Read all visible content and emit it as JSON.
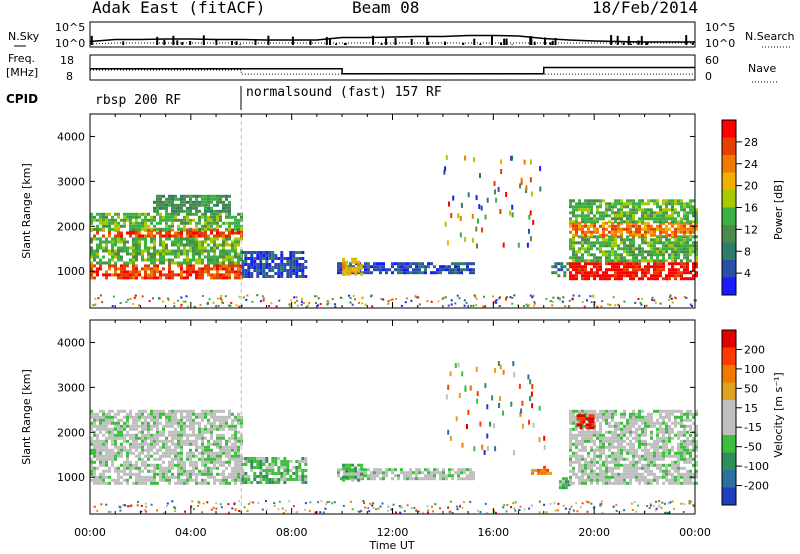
{
  "header": {
    "site": "Adak East (fitACF)",
    "beam": "Beam 08",
    "date": "18/Feb/2014"
  },
  "top_panels": {
    "nsky_label": "N.Sky",
    "nsky_ticks": [
      "10^5",
      "10^0"
    ],
    "nsearch_label": "N.Search",
    "nsearch_ticks": [
      "10^5",
      "10^0"
    ],
    "freq_label_1": "Freq.",
    "freq_label_2": "[MHz]",
    "freq_ticks": [
      "18",
      "8"
    ],
    "nave_label": "Nave",
    "nave_ticks": [
      "60",
      "0"
    ],
    "cpid_label": "CPID",
    "cpid_segments": [
      {
        "label": "rbsp 200 RF",
        "start": 0,
        "end": 6
      },
      {
        "label": "normalsound (fast) 157 RF",
        "start": 6,
        "end": 24
      }
    ]
  },
  "colors": {
    "power": [
      "#1a1aff",
      "#2b4fa8",
      "#2e7d6b",
      "#4a8a4a",
      "#3cb043",
      "#a8c800",
      "#f0b000",
      "#f07a00",
      "#e64000",
      "#ff0000"
    ],
    "velocity": [
      "#1f3fbf",
      "#2d6fa0",
      "#2f8f5a",
      "#3cbf3c",
      "#bfbfbf",
      "#bfbfbf",
      "#e0a020",
      "#f07a00",
      "#ff3a00",
      "#e00000"
    ],
    "ground": "#c0c0c0"
  },
  "power_colorbar": {
    "label": "Power [dB]",
    "ticks": [
      "28",
      "24",
      "20",
      "16",
      "12",
      "8",
      "4"
    ]
  },
  "velocity_colorbar": {
    "label": "Velocity [m s⁻¹]",
    "ticks": [
      "200",
      "100",
      "50",
      "15",
      "-15",
      "-50",
      "-100",
      "-200"
    ]
  },
  "chart_data": [
    {
      "type": "line",
      "title": "Adak East (fitACF)  Beam 08  18/Feb/2014",
      "panel": "N.Sky / N.Search",
      "x": [
        0,
        1,
        2,
        3,
        4,
        5,
        6,
        7,
        8,
        9,
        10,
        11,
        12,
        13,
        14,
        15,
        16,
        17,
        18,
        19,
        20,
        21,
        22,
        23,
        24
      ],
      "series": [
        {
          "name": "N.Sky",
          "values": [
            1.1,
            1.5,
            1.5,
            1.6,
            1.6,
            1.5,
            1.5,
            1.4,
            1.4,
            1.4,
            1.9,
            1.9,
            2.0,
            2.1,
            2.1,
            2.3,
            2.3,
            2.2,
            1.7,
            1.4,
            1.2,
            1.1,
            1.0,
            1.0,
            1.0
          ]
        },
        {
          "name": "N.Search",
          "values": [
            0.6,
            0.8,
            0.8,
            0.8,
            0.8,
            0.8,
            0.8,
            0.8,
            0.8,
            0.8,
            0.8,
            0.8,
            0.8,
            0.8,
            0.8,
            0.8,
            0.8,
            0.8,
            0.8,
            0.8,
            0.8,
            0.8,
            0.8,
            0.8,
            0.8
          ]
        }
      ],
      "ylim": [
        0,
        5
      ]
    },
    {
      "type": "line",
      "panel": "Freq. [MHz] / Nave",
      "x": [
        0,
        6,
        10,
        18,
        24
      ],
      "series": [
        {
          "name": "Freq.",
          "values": [
            12.5,
            12.5,
            10.5,
            13.0,
            13.0
          ]
        },
        {
          "name": "Nave",
          "values": [
            24,
            14,
            14,
            14,
            14
          ]
        }
      ],
      "ylim": [
        8,
        18
      ]
    },
    {
      "type": "heatmap",
      "panel": "Power",
      "xlabel": "Time UT",
      "ylabel": "Slant Range [km]",
      "xlim": [
        0,
        24
      ],
      "ylim": [
        180,
        4500
      ],
      "x_ticks": [
        "00:00",
        "04:00",
        "08:00",
        "12:00",
        "16:00",
        "20:00",
        "00:00"
      ],
      "y_ticks": [
        "1000",
        "2000",
        "3000",
        "4000"
      ],
      "bands": [
        {
          "t0": 0.0,
          "t1": 6.0,
          "r0": 850,
          "r1": 1150,
          "level": 8
        },
        {
          "t0": 0.0,
          "t1": 6.0,
          "r0": 1150,
          "r1": 1750,
          "level": 4
        },
        {
          "t0": 0.0,
          "t1": 6.0,
          "r0": 1750,
          "r1": 1950,
          "level": 8
        },
        {
          "t0": 0.0,
          "t1": 6.0,
          "r0": 1950,
          "r1": 2300,
          "level": 4
        },
        {
          "t0": 2.5,
          "t1": 5.5,
          "r0": 2300,
          "r1": 2700,
          "level": 3
        },
        {
          "t0": 6.0,
          "t1": 8.5,
          "r0": 900,
          "r1": 1450,
          "level": 1
        },
        {
          "t0": 9.8,
          "t1": 15.2,
          "r0": 950,
          "r1": 1200,
          "level": 1
        },
        {
          "t0": 10.0,
          "t1": 10.8,
          "r0": 950,
          "r1": 1300,
          "level": 6
        },
        {
          "t0": 18.3,
          "t1": 19.0,
          "r0": 900,
          "r1": 1200,
          "level": 2
        },
        {
          "t0": 19.0,
          "t1": 24.0,
          "r0": 850,
          "r1": 1200,
          "level": 9
        },
        {
          "t0": 19.0,
          "t1": 24.0,
          "r0": 1200,
          "r1": 1800,
          "level": 4
        },
        {
          "t0": 19.0,
          "t1": 24.0,
          "r0": 1800,
          "r1": 2100,
          "level": 7
        },
        {
          "t0": 19.0,
          "t1": 24.0,
          "r0": 2100,
          "r1": 2600,
          "level": 4
        }
      ]
    },
    {
      "type": "heatmap",
      "panel": "Velocity",
      "xlabel": "Time UT",
      "ylabel": "Slant Range [km]",
      "xlim": [
        0,
        24
      ],
      "ylim": [
        180,
        4500
      ],
      "x_ticks": [
        "00:00",
        "04:00",
        "08:00",
        "12:00",
        "16:00",
        "20:00",
        "00:00"
      ],
      "y_ticks": [
        "1000",
        "2000",
        "3000",
        "4000"
      ],
      "bands": [
        {
          "t0": 0.0,
          "t1": 6.0,
          "r0": 850,
          "r1": 2500,
          "level": 4
        },
        {
          "t0": 6.0,
          "t1": 8.5,
          "r0": 900,
          "r1": 1450,
          "level": 3
        },
        {
          "t0": 9.8,
          "t1": 15.2,
          "r0": 950,
          "r1": 1200,
          "level": 4
        },
        {
          "t0": 10.0,
          "t1": 10.8,
          "r0": 950,
          "r1": 1300,
          "level": 3
        },
        {
          "t0": 17.5,
          "t1": 18.3,
          "r0": 1050,
          "r1": 1250,
          "level": 7
        },
        {
          "t0": 18.6,
          "t1": 19.0,
          "r0": 750,
          "r1": 1000,
          "level": 3
        },
        {
          "t0": 19.0,
          "t1": 24.0,
          "r0": 850,
          "r1": 2500,
          "level": 4
        },
        {
          "t0": 19.3,
          "t1": 20.0,
          "r0": 2100,
          "r1": 2400,
          "level": 9
        }
      ]
    }
  ]
}
